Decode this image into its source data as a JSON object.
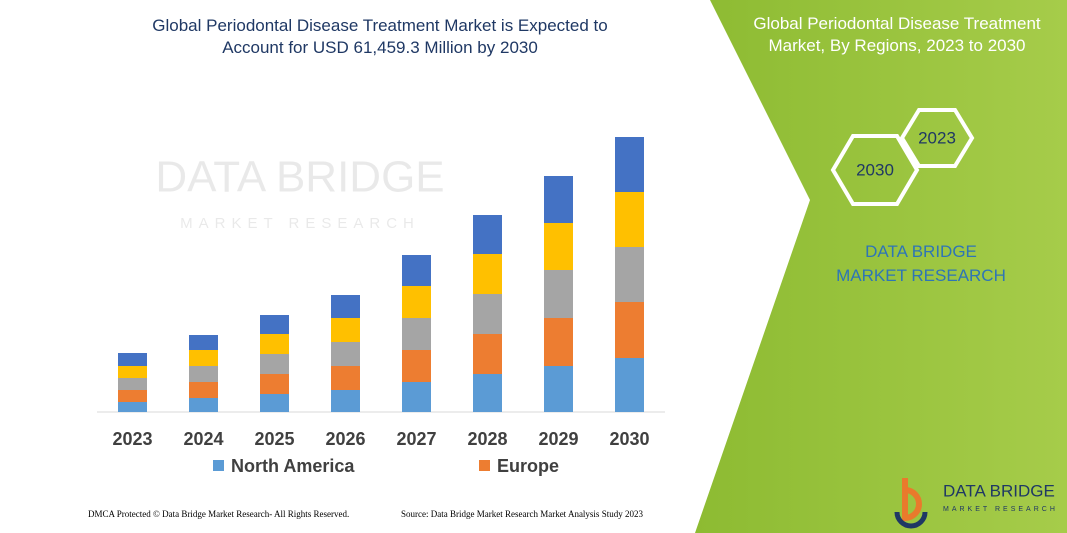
{
  "chart_data": {
    "type": "stacked-bar",
    "title": "Global Periodontal Disease Treatment Market is Expected to Account for USD 61,459.3 Million by 2030",
    "categories": [
      "2023",
      "2024",
      "2025",
      "2026",
      "2027",
      "2028",
      "2029",
      "2030"
    ],
    "series": [
      {
        "name": "North America",
        "color": "#5b9bd5",
        "values": [
          10,
          14,
          18,
          22,
          30,
          38,
          46,
          54
        ]
      },
      {
        "name": "Europe",
        "color": "#ed7d31",
        "values": [
          12,
          16,
          20,
          24,
          32,
          40,
          48,
          56
        ]
      },
      {
        "color": "#a5a5a5",
        "values": [
          12,
          16,
          20,
          24,
          32,
          40,
          48,
          55
        ]
      },
      {
        "color": "#ffc000",
        "values": [
          12,
          16,
          20,
          24,
          32,
          40,
          47,
          55
        ]
      },
      {
        "color": "#4472c4",
        "values": [
          13,
          15,
          19,
          23,
          31,
          39,
          47,
          55
        ]
      }
    ],
    "ylim": [
      0,
      300
    ]
  },
  "watermark": {
    "title": "DATA BRIDGE",
    "subtitle": "MARKET RESEARCH"
  },
  "panel": {
    "title": "Global Periodontal Disease Treatment Market, By Regions, 2023 to 2030",
    "hexagons": [
      "2030",
      "2023"
    ],
    "brand": "DATA BRIDGE MARKET RESEARCH"
  },
  "footer": {
    "copyright": "DMCA Protected © Data Bridge Market Research-  All Rights Reserved.",
    "source": "Source: Data Bridge Market Research  Market Analysis Study 2023"
  },
  "logo": {
    "title": "DATA BRIDGE",
    "subtitle": "MARKET RESEARCH"
  }
}
